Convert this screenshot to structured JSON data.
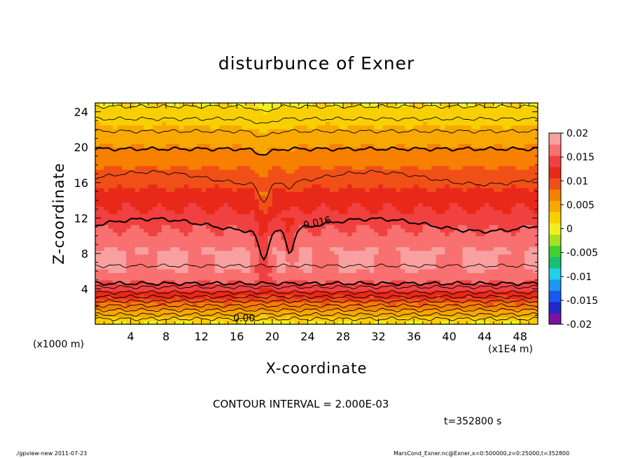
{
  "chart_data": {
    "type": "heatmap",
    "title": "disturbunce of Exner",
    "xlabel": "X-coordinate",
    "ylabel": "Z-coordinate",
    "x_unit_label": "(x1E4 m)",
    "y_unit_label": "(x1000 m)",
    "xlim": [
      0,
      50
    ],
    "ylim": [
      0,
      25
    ],
    "x_ticks": [
      4,
      8,
      12,
      16,
      20,
      24,
      28,
      32,
      36,
      40,
      44,
      48
    ],
    "y_ticks": [
      4,
      8,
      12,
      16,
      20,
      24
    ],
    "colorbar": {
      "ticks": [
        "0.02",
        "0.015",
        "0.01",
        "0.005",
        "0",
        "-0.005",
        "-0.01",
        "-0.015",
        "-0.02"
      ],
      "range": [
        -0.02,
        0.02
      ],
      "colors": [
        "#7d12a0",
        "#2028c8",
        "#1858f0",
        "#1c98f0",
        "#20d0e8",
        "#18c070",
        "#40d030",
        "#a8e020",
        "#f0f020",
        "#f8d000",
        "#f8a800",
        "#f88000",
        "#f05018",
        "#e82818",
        "#f04040",
        "#f87070",
        "#f8a0a0"
      ]
    },
    "contour_labels": [
      "0.016",
      "0.00"
    ],
    "contour_interval_text": "CONTOUR INTERVAL = 2.000E-03",
    "time_text": "t=352800 s"
  },
  "footer": {
    "left": "./gpview-new  2011-07-23",
    "right": "MarsCond_Exner.nc@Exner,x=0:500000,z=0:25000,t=352800"
  }
}
